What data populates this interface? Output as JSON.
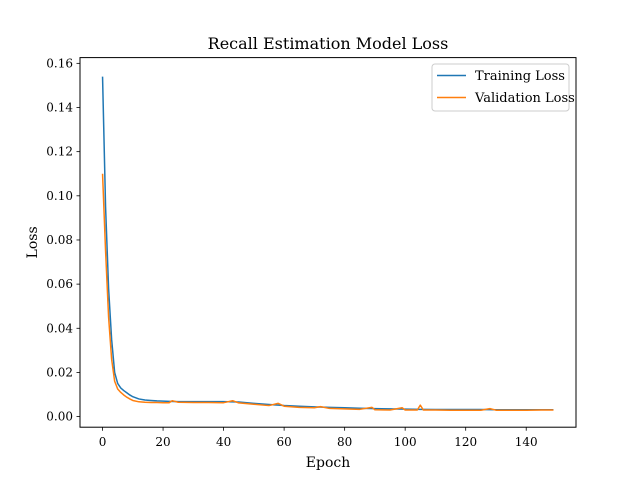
{
  "chart_data": {
    "type": "line",
    "title": "Recall Estimation Model Loss",
    "xlabel": "Epoch",
    "ylabel": "Loss",
    "xlim": [
      -7.45,
      156.45
    ],
    "ylim": [
      -0.0048,
      0.1626
    ],
    "x_ticks": [
      0,
      20,
      40,
      60,
      80,
      100,
      120,
      140
    ],
    "x_tick_labels": [
      "0",
      "20",
      "40",
      "60",
      "80",
      "100",
      "120",
      "140"
    ],
    "y_ticks": [
      0.0,
      0.02,
      0.04,
      0.06,
      0.08,
      0.1,
      0.12,
      0.14,
      0.16
    ],
    "y_tick_labels": [
      "0.00",
      "0.02",
      "0.04",
      "0.06",
      "0.08",
      "0.10",
      "0.12",
      "0.14",
      "0.16"
    ],
    "grid": false,
    "legend_position": "top-right",
    "series": [
      {
        "name": "Training Loss",
        "color": "#1f77b4",
        "x": [
          0,
          1,
          2,
          3,
          4,
          5,
          6,
          7,
          8,
          9,
          10,
          12,
          14,
          16,
          18,
          20,
          22,
          25,
          30,
          35,
          40,
          45,
          50,
          55,
          60,
          65,
          70,
          75,
          80,
          85,
          90,
          95,
          100,
          105,
          110,
          115,
          120,
          125,
          130,
          135,
          140,
          145,
          149
        ],
        "y": [
          0.154,
          0.095,
          0.058,
          0.035,
          0.02,
          0.015,
          0.013,
          0.0118,
          0.0108,
          0.0098,
          0.009,
          0.008,
          0.0075,
          0.0073,
          0.0071,
          0.007,
          0.0069,
          0.0068,
          0.0068,
          0.0068,
          0.0068,
          0.0066,
          0.006,
          0.0055,
          0.005,
          0.0047,
          0.0044,
          0.0042,
          0.004,
          0.0038,
          0.0036,
          0.0035,
          0.0034,
          0.0033,
          0.0032,
          0.0032,
          0.0032,
          0.0032,
          0.0031,
          0.0031,
          0.0031,
          0.0031,
          0.0031
        ]
      },
      {
        "name": "Validation Loss",
        "color": "#ff7f0e",
        "x": [
          0,
          1,
          2,
          3,
          4,
          5,
          6,
          7,
          8,
          9,
          10,
          12,
          14,
          16,
          18,
          20,
          22,
          23,
          25,
          30,
          35,
          40,
          43,
          45,
          50,
          55,
          58,
          60,
          65,
          70,
          72,
          75,
          80,
          85,
          89,
          90,
          95,
          99,
          100,
          104,
          105,
          106,
          110,
          115,
          120,
          125,
          128,
          130,
          135,
          140,
          145,
          149
        ],
        "y": [
          0.11,
          0.075,
          0.045,
          0.026,
          0.016,
          0.0125,
          0.011,
          0.0098,
          0.0088,
          0.008,
          0.0073,
          0.0067,
          0.0065,
          0.0064,
          0.0064,
          0.0063,
          0.0063,
          0.0072,
          0.0065,
          0.0064,
          0.0064,
          0.0063,
          0.0072,
          0.0062,
          0.0056,
          0.005,
          0.006,
          0.0047,
          0.0042,
          0.004,
          0.0045,
          0.0037,
          0.0035,
          0.0033,
          0.0042,
          0.0031,
          0.003,
          0.004,
          0.003,
          0.003,
          0.0052,
          0.003,
          0.003,
          0.0029,
          0.0029,
          0.0029,
          0.0036,
          0.0029,
          0.0029,
          0.0029,
          0.003,
          0.003
        ]
      }
    ]
  }
}
